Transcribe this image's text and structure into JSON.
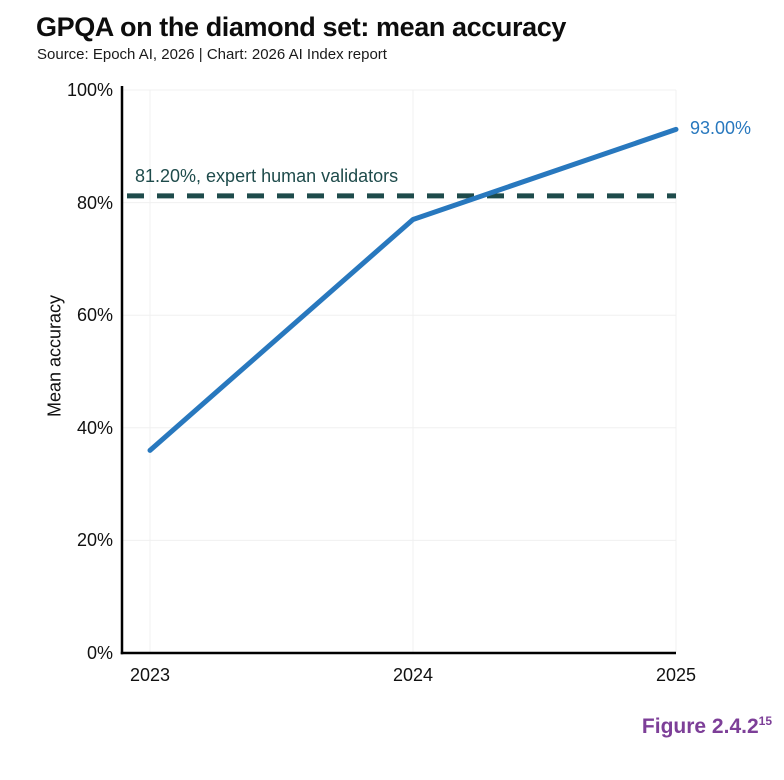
{
  "header": {
    "title": "GPQA on the diamond set: mean accuracy",
    "subtitle": "Source: Epoch AI, 2026 | Chart: 2026 AI Index report"
  },
  "figure_label": {
    "text": "Figure 2.4.2",
    "superscript": "15"
  },
  "colors": {
    "series_line": "#2878BE",
    "reference_line": "#1E4B4B",
    "figure_label": "#7D3F98",
    "axis": "#000000",
    "grid": "#F0F0F0",
    "text": "#111111"
  },
  "chart_data": {
    "type": "line",
    "title": "GPQA on the diamond set: mean accuracy",
    "subtitle": "Source: Epoch AI, 2026 | Chart: 2026 AI Index report",
    "categories": [
      "2023",
      "2024",
      "2025"
    ],
    "x": [
      2023,
      2024,
      2025
    ],
    "series": [
      {
        "name": "Mean accuracy",
        "values": [
          36.0,
          77.0,
          93.0
        ],
        "color": "#2878BE"
      }
    ],
    "end_label": "93.00%",
    "reference_line": {
      "value": 81.2,
      "label": "81.20%, expert human validators",
      "color": "#1E4B4B",
      "style": "dashed"
    },
    "xlabel": "",
    "ylabel": "Mean accuracy",
    "ylim": [
      0,
      100
    ],
    "yticks": [
      0,
      20,
      40,
      60,
      80,
      100
    ],
    "ytick_labels": [
      "0%",
      "20%",
      "40%",
      "60%",
      "80%",
      "100%"
    ],
    "grid": true,
    "legend": false
  }
}
